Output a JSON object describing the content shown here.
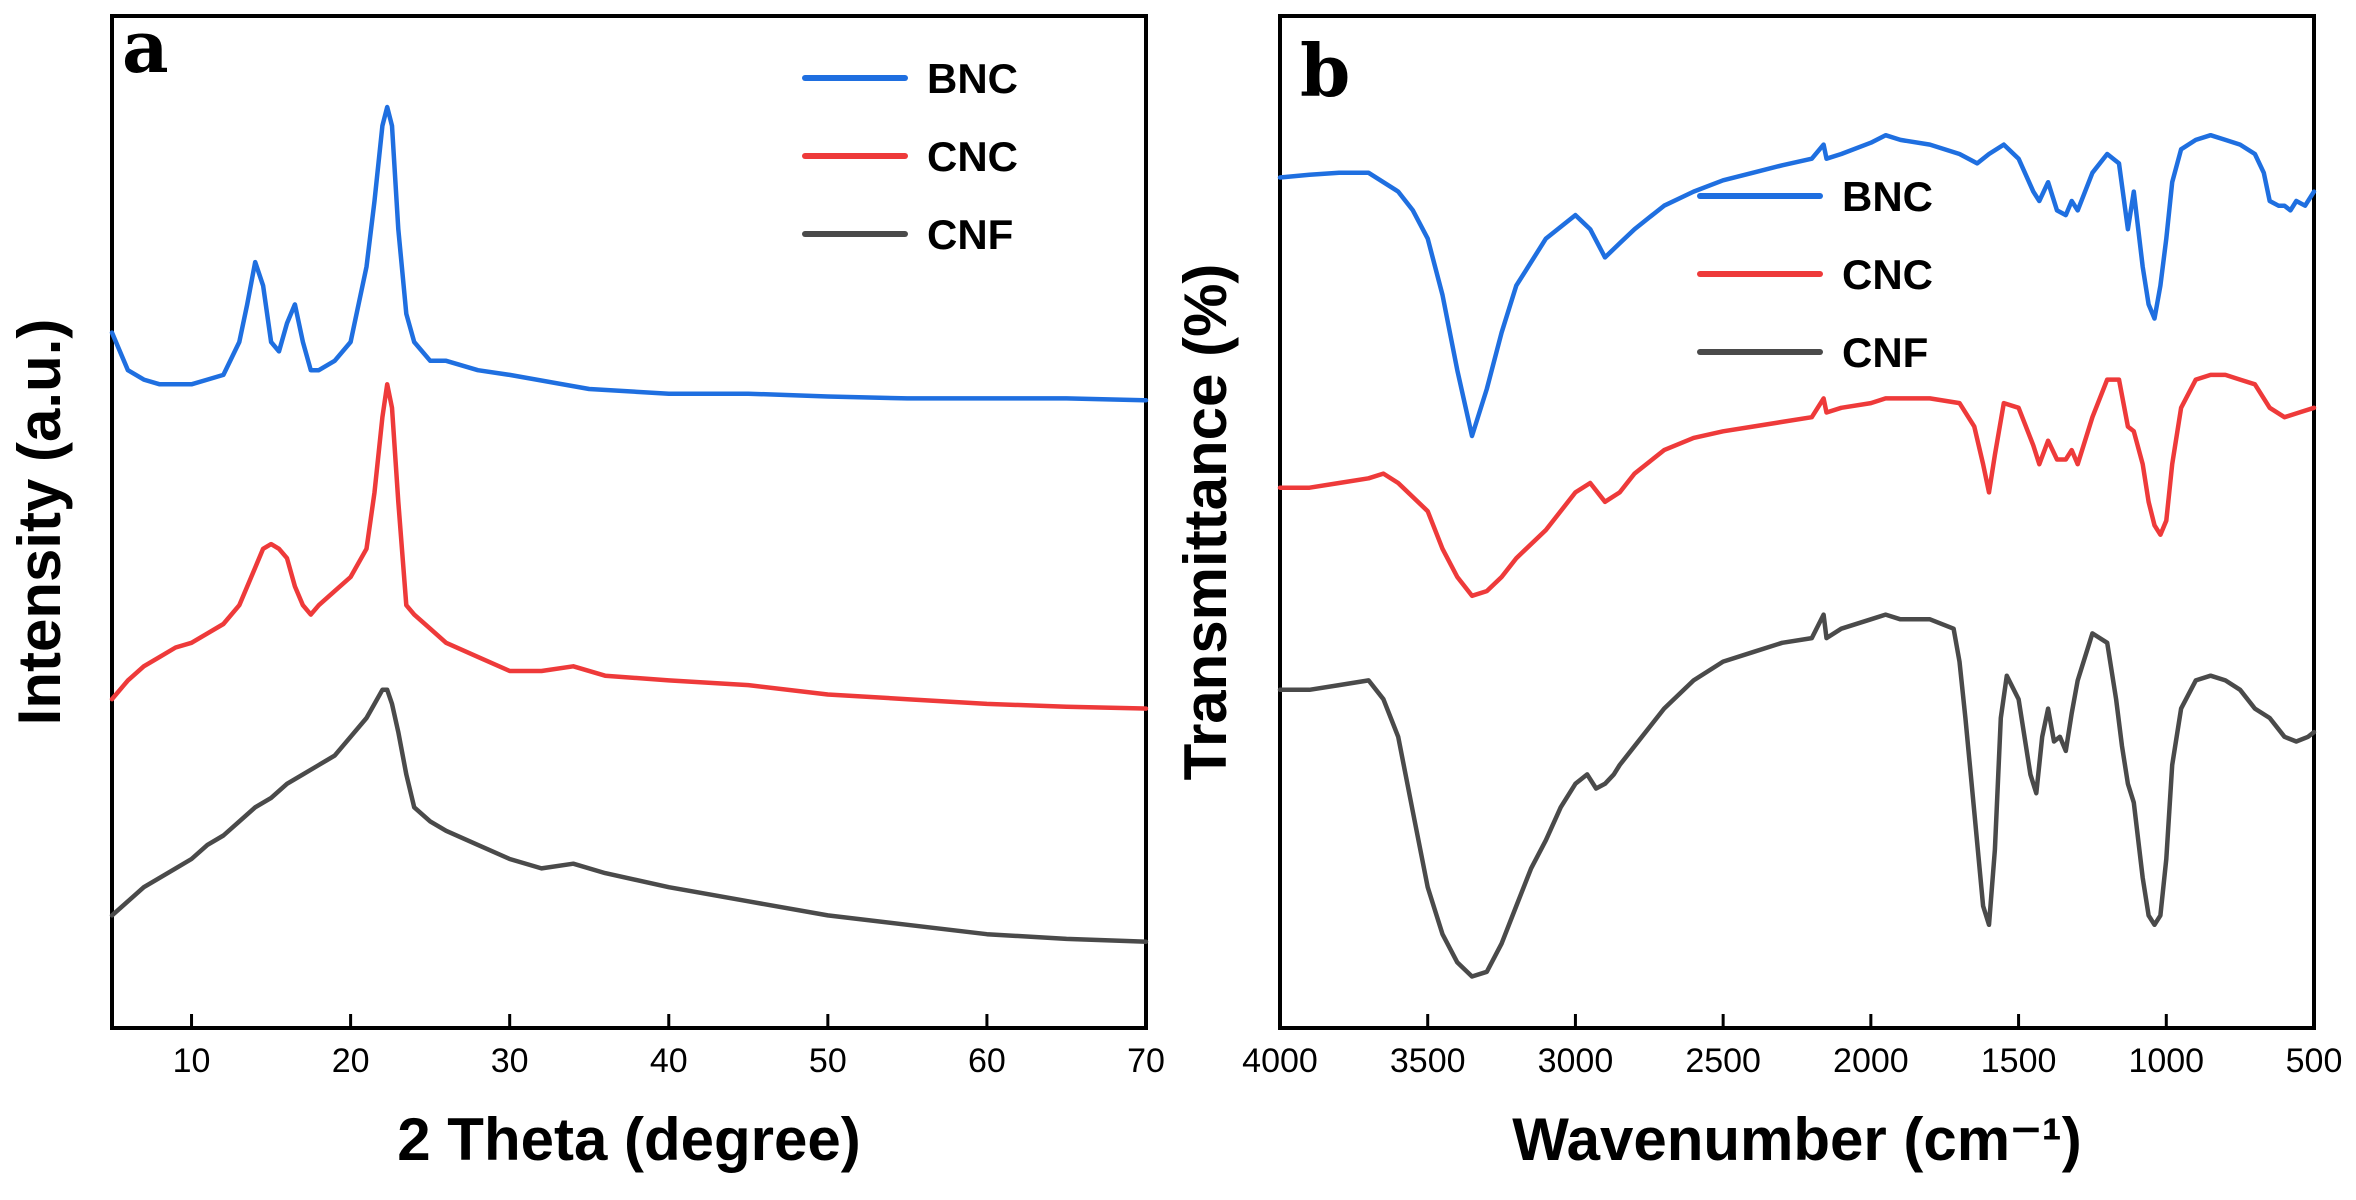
{
  "colors": {
    "BNC": "#1f6fe0",
    "CNC": "#ee3a3a",
    "CNF": "#4a4a4a"
  },
  "chart_data": [
    {
      "id": "a",
      "type": "line",
      "panel_label": "a",
      "title": "",
      "xlabel": "2 Theta (degree)",
      "ylabel": "Intensity (a.u.)",
      "xlim": [
        5,
        70
      ],
      "ylim": [
        0,
        100
      ],
      "x_reversed": false,
      "x_ticks": [
        10,
        20,
        30,
        40,
        50,
        60,
        70
      ],
      "y_ticks_shown": false,
      "legend": {
        "position": "top-right",
        "entries": [
          "BNC",
          "CNC",
          "CNF"
        ]
      },
      "series": [
        {
          "name": "BNC",
          "x": [
            5,
            6,
            7,
            8,
            9,
            10,
            11,
            12,
            13,
            13.5,
            14,
            14.5,
            15,
            15.5,
            16,
            16.5,
            17,
            17.5,
            18,
            19,
            20,
            21,
            21.5,
            22,
            22.3,
            22.6,
            23,
            23.5,
            24,
            25,
            26,
            28,
            30,
            35,
            40,
            45,
            50,
            55,
            60,
            65,
            70
          ],
          "y": [
            71,
            67,
            66,
            65.5,
            65.5,
            65.5,
            66,
            66.5,
            70,
            74,
            78.5,
            76,
            70,
            69,
            72,
            74,
            70,
            67,
            67,
            68,
            70,
            78,
            85,
            93,
            95,
            93,
            82,
            73,
            70,
            68,
            68,
            67,
            66.5,
            65,
            64.5,
            64.5,
            64.2,
            64,
            64,
            64,
            63.8
          ]
        },
        {
          "name": "CNC",
          "x": [
            5,
            6,
            7,
            8,
            9,
            10,
            11,
            12,
            13,
            14,
            14.5,
            15,
            15.5,
            16,
            16.5,
            17,
            17.5,
            18,
            19,
            20,
            21,
            21.5,
            22,
            22.3,
            22.6,
            23,
            23.5,
            24,
            25,
            26,
            28,
            30,
            32,
            34,
            36,
            40,
            45,
            50,
            55,
            60,
            65,
            70
          ],
          "y": [
            32,
            34,
            35.5,
            36.5,
            37.5,
            38,
            39,
            40,
            42,
            46,
            48,
            48.5,
            48,
            47,
            44,
            42,
            41,
            42,
            43.5,
            45,
            48,
            54,
            62,
            65.5,
            63,
            53,
            42,
            41,
            39.5,
            38,
            36.5,
            35,
            35,
            35.5,
            34.5,
            34,
            33.5,
            32.5,
            32,
            31.5,
            31.2,
            31
          ]
        },
        {
          "name": "CNF",
          "x": [
            5,
            6,
            7,
            8,
            9,
            10,
            11,
            12,
            13,
            14,
            15,
            16,
            17,
            18,
            19,
            20,
            21,
            21.5,
            22,
            22.3,
            22.6,
            23,
            23.5,
            24,
            25,
            26,
            28,
            30,
            32,
            34,
            36,
            40,
            45,
            50,
            55,
            60,
            65,
            70
          ],
          "y": [
            9,
            10.5,
            12,
            13,
            14,
            15,
            16.5,
            17.5,
            19,
            20.5,
            21.5,
            23,
            24,
            25,
            26,
            28,
            30,
            31.5,
            33,
            33,
            31.5,
            28.5,
            24,
            20.5,
            19,
            18,
            16.5,
            15,
            14,
            14.5,
            13.5,
            12,
            10.5,
            9,
            8,
            7,
            6.5,
            6.2
          ]
        }
      ]
    },
    {
      "id": "b",
      "type": "line",
      "panel_label": "b",
      "title": "",
      "xlabel": "Wavenumber (cm⁻¹)",
      "ylabel": "Transmittance (%)",
      "xlim": [
        4000,
        500
      ],
      "ylim": [
        0,
        100
      ],
      "x_reversed": true,
      "x_ticks": [
        4000,
        3500,
        3000,
        2500,
        2000,
        1500,
        1000,
        500
      ],
      "y_ticks_shown": false,
      "legend": {
        "position": "top-center",
        "entries": [
          "BNC",
          "CNC",
          "CNF"
        ]
      },
      "series": [
        {
          "name": "BNC",
          "x": [
            4000,
            3900,
            3800,
            3700,
            3600,
            3550,
            3500,
            3450,
            3400,
            3350,
            3300,
            3250,
            3200,
            3100,
            3000,
            2950,
            2900,
            2850,
            2800,
            2700,
            2600,
            2500,
            2400,
            2300,
            2200,
            2160,
            2150,
            2100,
            2000,
            1950,
            1900,
            1800,
            1700,
            1640,
            1600,
            1550,
            1500,
            1450,
            1430,
            1400,
            1370,
            1340,
            1320,
            1300,
            1250,
            1200,
            1160,
            1130,
            1110,
            1080,
            1060,
            1040,
            1020,
            1000,
            980,
            950,
            900,
            850,
            800,
            750,
            700,
            670,
            650,
            620,
            600,
            580,
            560,
            530,
            500
          ],
          "y": [
            87.5,
            87.8,
            88,
            88,
            86,
            84,
            81,
            75,
            67,
            60,
            65,
            71,
            76,
            81,
            83.5,
            82,
            79,
            80.5,
            82,
            84.5,
            86,
            87.2,
            88,
            88.8,
            89.5,
            91,
            89.5,
            90,
            91.2,
            92,
            91.5,
            91,
            90,
            89,
            90,
            91,
            89.5,
            86,
            85,
            87,
            84,
            83.5,
            85,
            84,
            88,
            90,
            89,
            82,
            86,
            78,
            74,
            72.5,
            76,
            81,
            87,
            90.5,
            91.5,
            92,
            91.5,
            91,
            90,
            88,
            85,
            84.5,
            84.5,
            84,
            85,
            84.5,
            86
          ]
        },
        {
          "name": "CNC",
          "x": [
            4000,
            3900,
            3800,
            3700,
            3650,
            3600,
            3500,
            3450,
            3400,
            3350,
            3300,
            3250,
            3200,
            3100,
            3000,
            2950,
            2900,
            2850,
            2800,
            2700,
            2600,
            2500,
            2400,
            2300,
            2200,
            2160,
            2150,
            2100,
            2000,
            1950,
            1900,
            1800,
            1700,
            1650,
            1620,
            1600,
            1580,
            1550,
            1500,
            1450,
            1430,
            1400,
            1370,
            1340,
            1320,
            1300,
            1250,
            1200,
            1160,
            1130,
            1110,
            1080,
            1060,
            1040,
            1020,
            1000,
            980,
            950,
            900,
            850,
            800,
            750,
            700,
            650,
            600,
            550,
            500
          ],
          "y": [
            54.5,
            54.5,
            55,
            55.5,
            56,
            55,
            52,
            48,
            45,
            43,
            43.5,
            45,
            47,
            50,
            54,
            55,
            53,
            54,
            56,
            58.5,
            59.8,
            60.5,
            61,
            61.5,
            62,
            64,
            62.5,
            63,
            63.5,
            64,
            64,
            64,
            63.5,
            61,
            57,
            54,
            58,
            63.5,
            63,
            59,
            57,
            59.5,
            57.5,
            57.5,
            58.5,
            57,
            62,
            66,
            66,
            61,
            60.5,
            57,
            53,
            50.5,
            49.5,
            51,
            57,
            63,
            66,
            66.5,
            66.5,
            66,
            65.5,
            63,
            62,
            62.5,
            63
          ]
        },
        {
          "name": "CNF",
          "x": [
            4000,
            3900,
            3800,
            3700,
            3650,
            3600,
            3550,
            3500,
            3450,
            3400,
            3350,
            3300,
            3250,
            3200,
            3150,
            3100,
            3050,
            3000,
            2960,
            2930,
            2900,
            2870,
            2850,
            2800,
            2700,
            2600,
            2500,
            2400,
            2300,
            2200,
            2160,
            2150,
            2100,
            2000,
            1950,
            1900,
            1800,
            1720,
            1700,
            1680,
            1650,
            1620,
            1600,
            1580,
            1560,
            1540,
            1500,
            1460,
            1440,
            1420,
            1400,
            1380,
            1360,
            1340,
            1320,
            1300,
            1250,
            1200,
            1170,
            1150,
            1130,
            1110,
            1080,
            1060,
            1040,
            1020,
            1000,
            980,
            950,
            900,
            850,
            800,
            750,
            700,
            650,
            600,
            560,
            520,
            500
          ],
          "y": [
            33,
            33,
            33.5,
            34,
            32,
            28,
            20,
            12,
            7,
            4,
            2.5,
            3,
            6,
            10,
            14,
            17,
            20.5,
            23,
            24,
            22.5,
            23,
            24,
            25,
            27,
            31,
            34,
            36,
            37,
            38,
            38.5,
            41,
            38.5,
            39.5,
            40.5,
            41,
            40.5,
            40.5,
            39.5,
            36,
            30,
            20,
            10,
            8,
            16,
            30,
            34.5,
            32,
            24,
            22,
            28,
            31,
            27.5,
            28,
            26.5,
            30.5,
            34,
            39,
            38,
            32,
            27,
            23,
            21,
            13,
            9,
            8,
            9,
            15,
            25,
            31,
            34,
            34.5,
            34,
            33,
            31,
            30,
            28,
            27.5,
            28,
            28.5
          ]
        }
      ]
    }
  ]
}
